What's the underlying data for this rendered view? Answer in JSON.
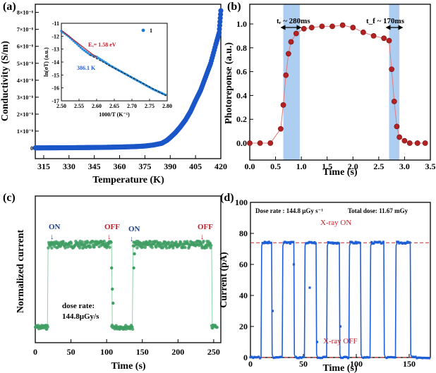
{
  "chart_data": [
    {
      "panel": "(a)",
      "type": "scatter",
      "xlabel": "Temperature (K)",
      "ylabel": "Conductivity (S/m)",
      "xlim": [
        310,
        420
      ],
      "xticks": [
        "315",
        "330",
        "345",
        "360",
        "375",
        "390",
        "405",
        "420"
      ],
      "yticks": [
        "0",
        "1×10⁻⁸",
        "2×10⁻⁸",
        "3×10⁻⁸",
        "4×10⁻⁸",
        "5×10⁻⁸",
        "6×10⁻⁸",
        "7×10⁻⁸",
        "8×10⁻⁸"
      ],
      "ylim": [
        0,
        8.4
      ],
      "series": [
        {
          "name": "conductivity (×10⁻⁸ S/m)",
          "color": "#1a56c8",
          "x": [
            310,
            320,
            330,
            340,
            350,
            360,
            370,
            375,
            380,
            385,
            388,
            390,
            393,
            396,
            399,
            402,
            405,
            408,
            411,
            414,
            417,
            419,
            420
          ],
          "y": [
            0.01,
            0.015,
            0.02,
            0.03,
            0.04,
            0.06,
            0.09,
            0.12,
            0.18,
            0.28,
            0.45,
            0.62,
            0.9,
            1.25,
            1.65,
            2.15,
            2.8,
            3.4,
            4.2,
            5.0,
            6.1,
            6.8,
            8.1
          ]
        }
      ],
      "inset": {
        "xlabel": "1000/T (K⁻¹)",
        "ylabel": "ln(σT) (a.u.)",
        "xlim": [
          2.5,
          2.8
        ],
        "ylim": [
          -17,
          -11
        ],
        "xticks": [
          "2.50",
          "2.55",
          "2.60",
          "2.65",
          "2.70",
          "2.75",
          "2.80"
        ],
        "yticks": [
          "-11",
          "-12",
          "-13",
          "-14",
          "-15",
          "-16",
          "-17"
        ],
        "legend": "1",
        "annotations": [
          "Eₐ= 1.58 eV",
          "386.1 K"
        ],
        "data_x": [
          2.5,
          2.52,
          2.54,
          2.56,
          2.58,
          2.6,
          2.62,
          2.64,
          2.66,
          2.68,
          2.7,
          2.72,
          2.74,
          2.76,
          2.78,
          2.8
        ],
        "data_y": [
          -11.6,
          -12.0,
          -12.5,
          -13.0,
          -13.4,
          -13.6,
          -13.95,
          -14.3,
          -14.6,
          -14.9,
          -15.2,
          -15.5,
          -15.8,
          -16.1,
          -16.35,
          -16.6
        ],
        "fit1": {
          "x": [
            2.5,
            2.6
          ],
          "y": [
            -11.55,
            -13.65
          ]
        },
        "fit2": {
          "x": [
            2.58,
            2.8
          ],
          "y": [
            -13.45,
            -16.65
          ]
        }
      }
    },
    {
      "panel": "(b)",
      "type": "line",
      "xlabel": "Time (s)",
      "ylabel": "Photoreponse (a.u.)",
      "xlim": [
        0,
        3.5
      ],
      "ylim": [
        0,
        1.1
      ],
      "xticks": [
        "0.0",
        "0.5",
        "1.0",
        "1.5",
        "2.0",
        "2.5",
        "3.0",
        "3.5"
      ],
      "yticks": [
        "0.0",
        "0.2",
        "0.4",
        "0.6",
        "0.8",
        "1.0"
      ],
      "shaded": [
        [
          0.65,
          0.97
        ],
        [
          2.7,
          2.9
        ]
      ],
      "annotations": [
        "tᵣ ~ 280ms",
        "t_f ~ 170ms"
      ],
      "series": [
        {
          "name": "photoresponse",
          "color": "#b22222",
          "x": [
            0.0,
            0.2,
            0.4,
            0.6,
            0.65,
            0.7,
            0.75,
            0.8,
            0.9,
            1.05,
            1.2,
            1.4,
            1.6,
            1.8,
            2.0,
            2.2,
            2.4,
            2.6,
            2.7,
            2.75,
            2.8,
            2.85,
            2.9,
            3.0,
            3.1,
            3.25,
            3.4
          ],
          "y": [
            0.0,
            0.0,
            0.0,
            0.12,
            0.32,
            0.57,
            0.75,
            0.85,
            0.92,
            0.96,
            0.97,
            0.98,
            0.98,
            0.99,
            0.97,
            0.93,
            0.9,
            0.88,
            0.86,
            0.62,
            0.35,
            0.14,
            0.05,
            0.02,
            0.0,
            0.0,
            0.0
          ]
        }
      ]
    },
    {
      "panel": "(c)",
      "type": "scatter",
      "xlabel": "Time (s)",
      "ylabel": "Normalized current",
      "xlim": [
        0,
        260
      ],
      "xticks": [
        "0",
        "50",
        "100",
        "150",
        "200",
        "250"
      ],
      "annotations": {
        "on1": "ON",
        "off1": "OFF",
        "on2": "ON",
        "off2": "OFF",
        "dose_label": "dose rate:",
        "dose_value": "144.8μGy/s"
      },
      "on_intervals": [
        [
          18,
          107
        ],
        [
          137,
          247
        ]
      ],
      "series": [
        {
          "name": "normalized current",
          "color": "#3f9e63"
        }
      ]
    },
    {
      "panel": "(d)",
      "type": "line",
      "xlabel": "Time (s)",
      "ylabel": "Current (pA)",
      "xlim": [
        0,
        170
      ],
      "ylim": [
        0,
        100
      ],
      "xticks": [
        "0",
        "50",
        "100",
        "150"
      ],
      "yticks": [
        "0",
        "20",
        "40",
        "60",
        "80",
        "100"
      ],
      "annotations": {
        "dose": "Dose rate : 144.8 μGy s⁻¹",
        "total": "Total dose: 11.67 mGy",
        "on": "X-ray ON",
        "off": "X-ray OFF"
      },
      "on_level": 74,
      "off_level": 0,
      "on_intervals": [
        [
          10,
          20
        ],
        [
          30,
          41
        ],
        [
          51,
          62
        ],
        [
          72,
          84
        ],
        [
          93,
          104
        ],
        [
          113,
          126
        ],
        [
          137,
          151
        ]
      ],
      "series": [
        {
          "name": "current",
          "color": "#1f5fd6"
        }
      ]
    }
  ]
}
